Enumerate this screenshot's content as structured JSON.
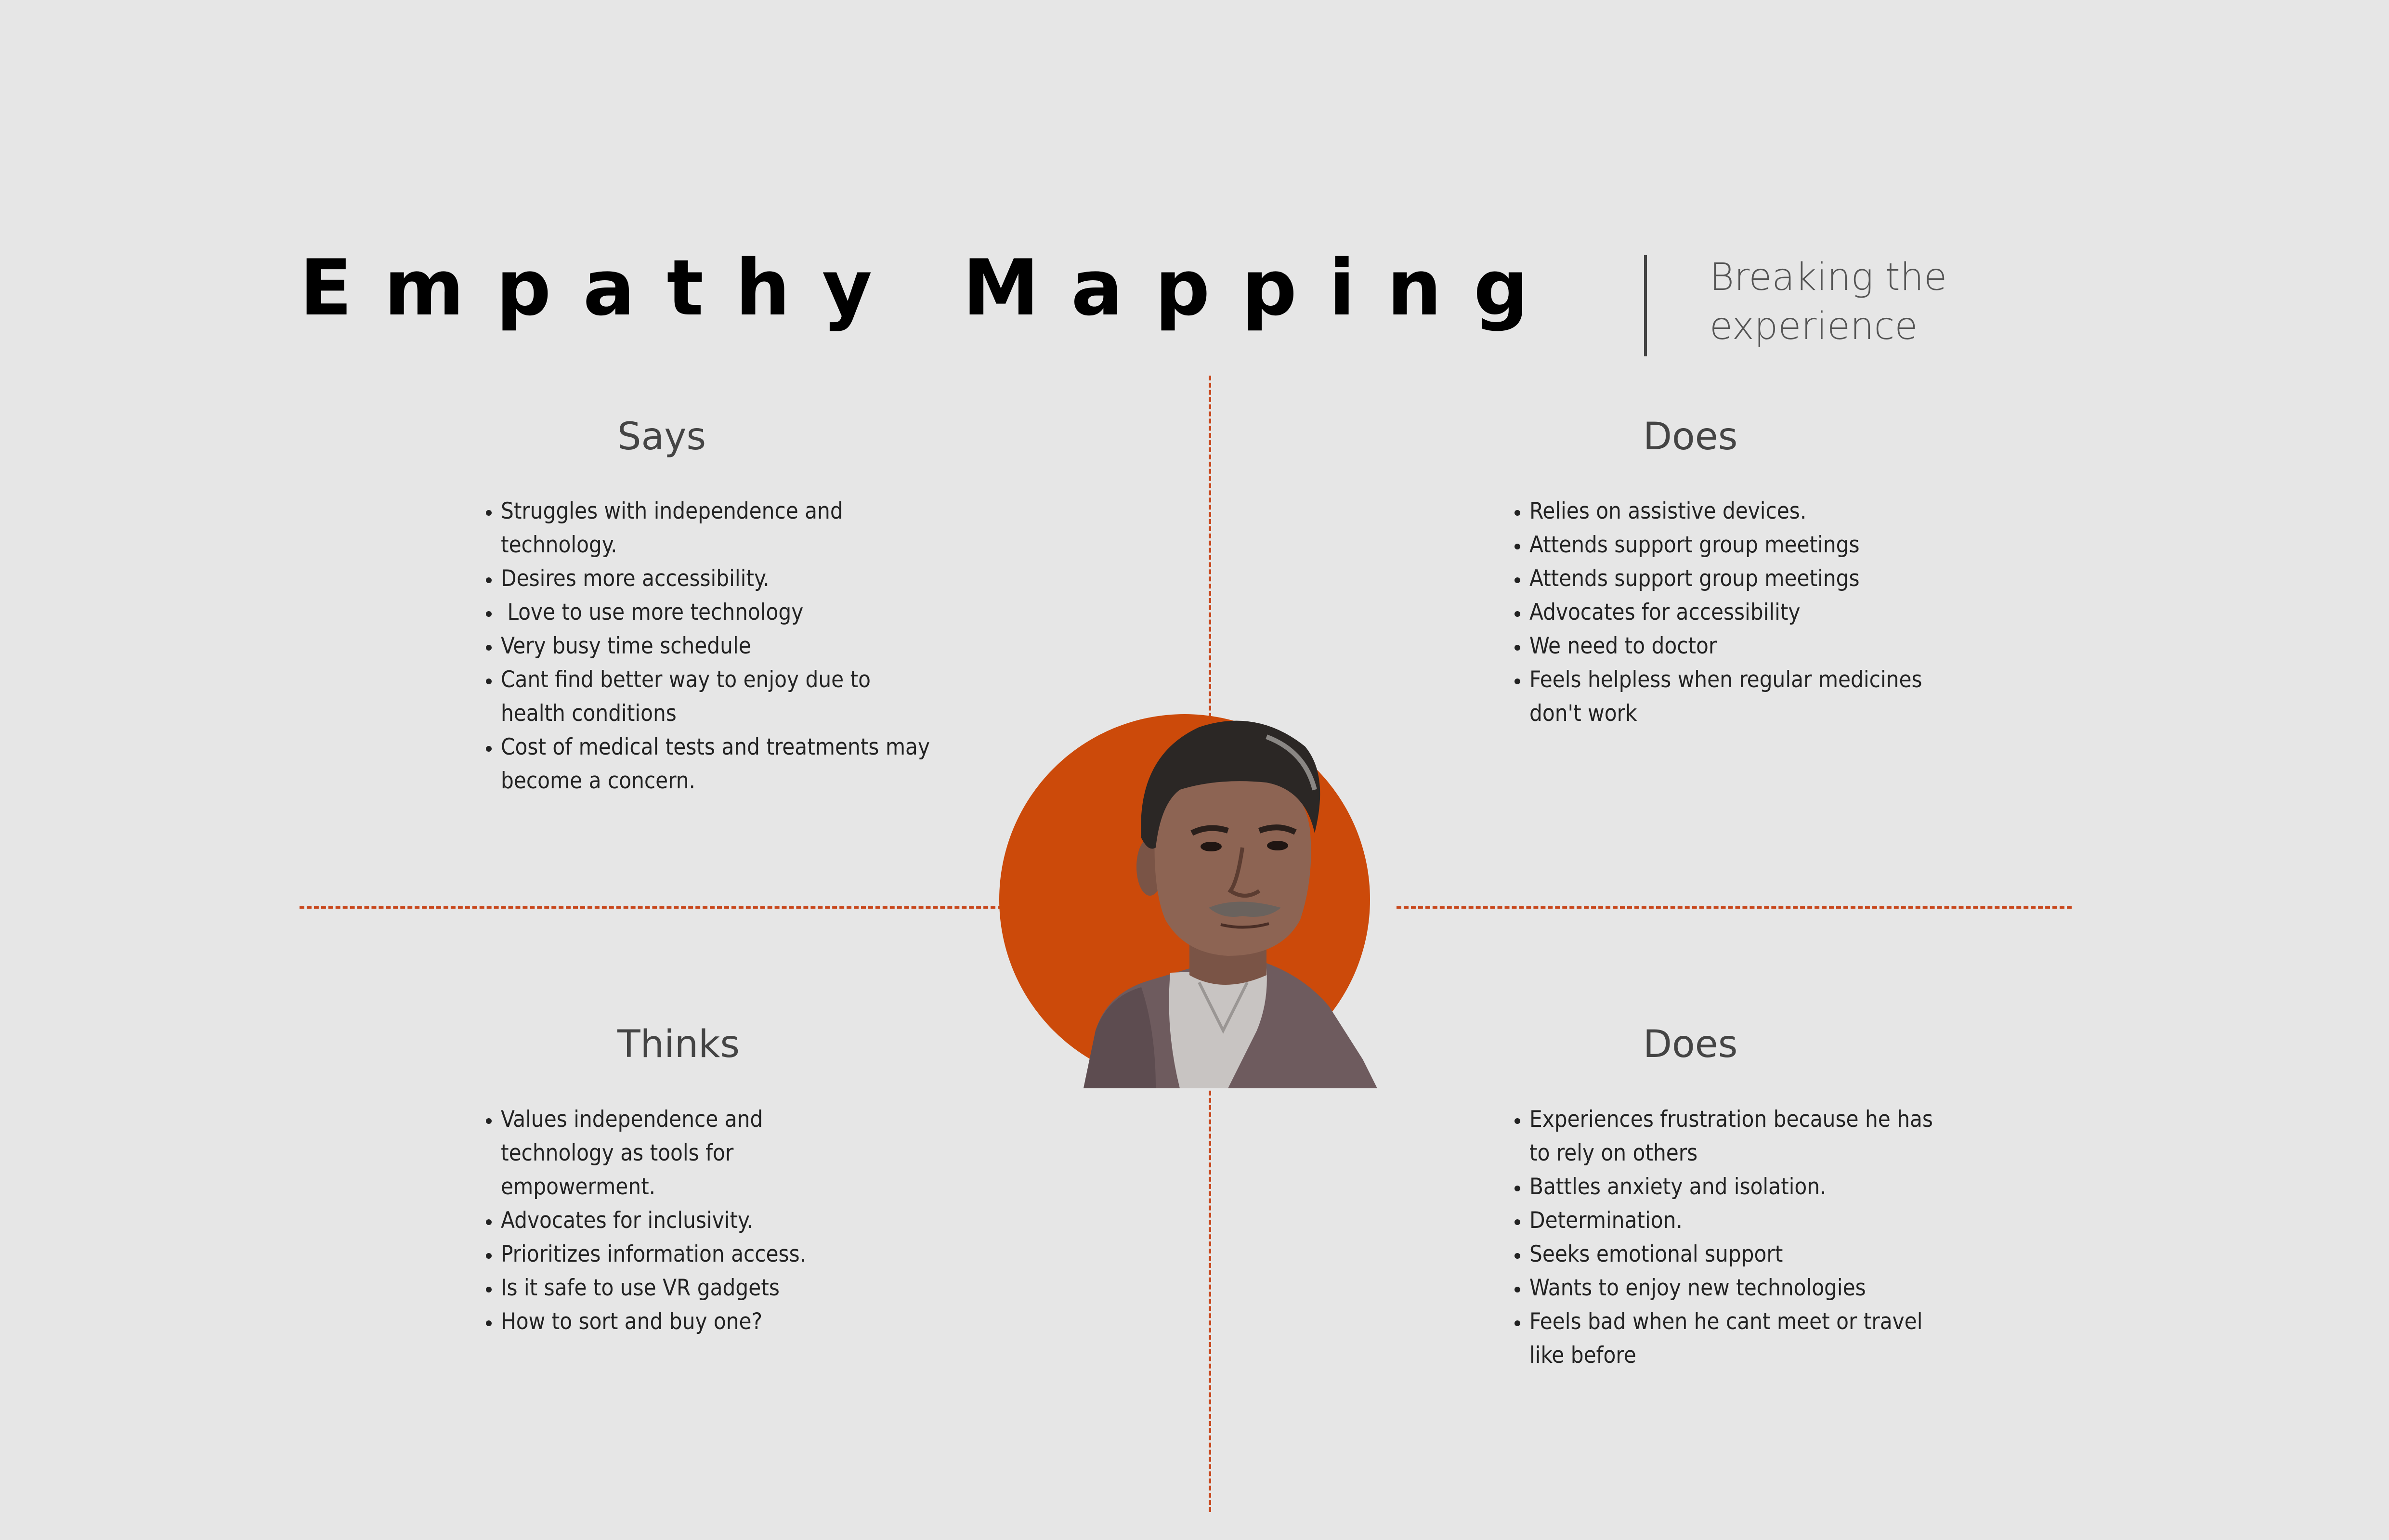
{
  "title": "Empathy Mapping",
  "subtitle": "Breaking the experience",
  "colors": {
    "accent": "#cc4a0a",
    "background": "#e6e6e6",
    "text": "#222222"
  },
  "quadrants": {
    "says": {
      "heading": "Says",
      "items": [
        "Struggles with independence and technology.",
        "Desires more accessibility.",
        " Love to use more technology",
        "Very busy time schedule",
        "Cant find better way to enjoy due to health conditions",
        "Cost of medical tests and treatments may become a concern."
      ]
    },
    "does_top": {
      "heading": "Does",
      "items": [
        "Relies on assistive devices.",
        "Attends support group meetings",
        "Attends support group meetings",
        "Advocates for accessibility",
        "We need to doctor",
        "Feels helpless when regular medicines don't work"
      ]
    },
    "thinks": {
      "heading": "Thinks",
      "items": [
        "Values independence and technology as tools for empowerment.",
        "Advocates for inclusivity.",
        "Prioritizes information access.",
        "Is it safe to use VR gadgets",
        "How to sort and buy one?"
      ]
    },
    "does_bottom": {
      "heading": "Does",
      "items": [
        "Experiences frustration because he has to rely on others",
        "Battles anxiety and isolation.",
        "Determination.",
        "Seeks emotional support",
        "Wants to enjoy new technologies",
        "Feels bad when he cant meet or travel like before"
      ]
    }
  },
  "persona": {
    "icon": "persona-portrait"
  }
}
